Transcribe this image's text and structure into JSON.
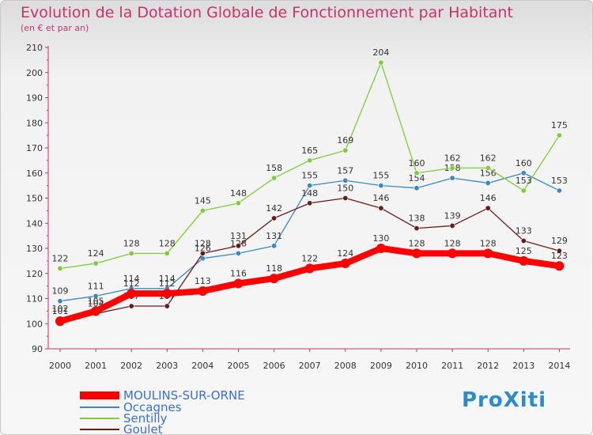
{
  "title": "Evolution de la Dotation Globale de Fonctionnement par Habitant",
  "subtitle": "(en € et par an)",
  "logo": "ProXiti",
  "colors": {
    "title": "#c8326b",
    "axis": "#c8326b",
    "text": "#333333"
  },
  "chart_data": {
    "type": "line",
    "title": "Evolution de la Dotation Globale de Fonctionnement par Habitant",
    "ylabel": "(en € et par an)",
    "xlabel": "",
    "ylim": [
      90,
      210
    ],
    "yticks": [
      90,
      100,
      110,
      120,
      130,
      140,
      150,
      160,
      170,
      180,
      190,
      200,
      210
    ],
    "categories": [
      "2000",
      "2001",
      "2002",
      "2003",
      "2004",
      "2005",
      "2006",
      "2007",
      "2008",
      "2009",
      "2010",
      "2011",
      "2012",
      "2013",
      "2014"
    ],
    "grid": false,
    "legend": "bottom-left",
    "series": [
      {
        "name": "MOULINS-SUR-ORNE",
        "color": "#ff0000",
        "values": [
          101,
          105,
          112,
          112,
          113,
          116,
          118,
          122,
          124,
          130,
          128,
          128,
          128,
          125,
          123
        ]
      },
      {
        "name": "Occagnes",
        "color": "#3a87c8",
        "values": [
          109,
          111,
          114,
          114,
          126,
          128,
          131,
          155,
          157,
          155,
          154,
          158,
          156,
          160,
          153
        ]
      },
      {
        "name": "Sentilly",
        "color": "#7ccd3c",
        "values": [
          122,
          124,
          128,
          128,
          145,
          148,
          158,
          165,
          169,
          204,
          160,
          162,
          162,
          153,
          175
        ]
      },
      {
        "name": "Goulet",
        "color": "#6b1a1a",
        "values": [
          102,
          104,
          107,
          107,
          128,
          131,
          142,
          148,
          150,
          146,
          138,
          139,
          146,
          133,
          129
        ]
      }
    ]
  }
}
